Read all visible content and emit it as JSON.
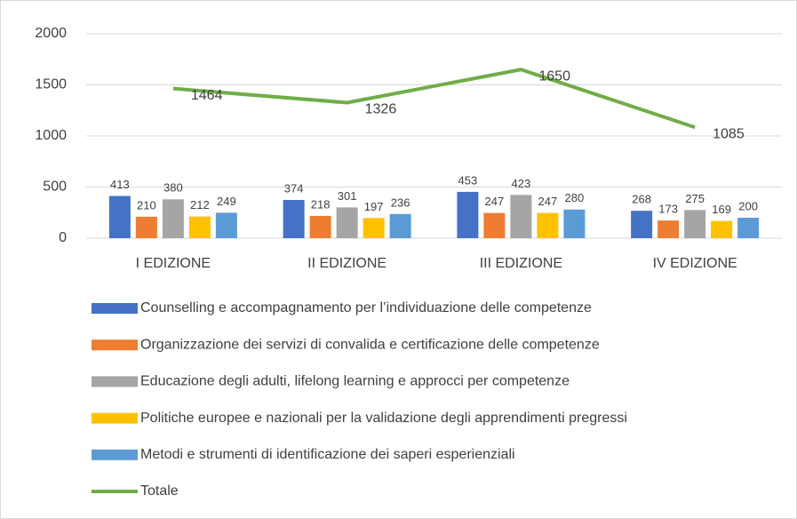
{
  "chart_data": {
    "type": "bar",
    "categories": [
      "I EDIZIONE",
      "II EDIZIONE",
      "III EDIZIONE",
      "IV EDIZIONE"
    ],
    "series": [
      {
        "name": "Counselling e accompagnamento per l’individuazione delle competenze",
        "color": "#4472c4",
        "values": [
          413,
          374,
          453,
          268
        ]
      },
      {
        "name": "Organizzazione dei servizi di convalida e certificazione delle competenze",
        "color": "#ed7d31",
        "values": [
          210,
          218,
          247,
          173
        ]
      },
      {
        "name": "Educazione degli adulti, lifelong learning e approcci per competenze",
        "color": "#a5a5a5",
        "values": [
          380,
          301,
          423,
          275
        ]
      },
      {
        "name": "Politiche europee e nazionali per la validazione degli apprendimenti pregressi",
        "color": "#ffc000",
        "values": [
          212,
          197,
          247,
          169
        ]
      },
      {
        "name": "Metodi e strumenti di identificazione dei saperi esperienziali",
        "color": "#5b9bd5",
        "values": [
          249,
          236,
          280,
          200
        ]
      },
      {
        "name": "Totale",
        "color": "#70ad47",
        "type": "line",
        "values": [
          1464,
          1326,
          1650,
          1085
        ]
      }
    ],
    "ylim": [
      0,
      2000
    ],
    "yticks": [
      0,
      500,
      1000,
      1500,
      2000
    ],
    "grid": true,
    "legend": "bottom"
  }
}
